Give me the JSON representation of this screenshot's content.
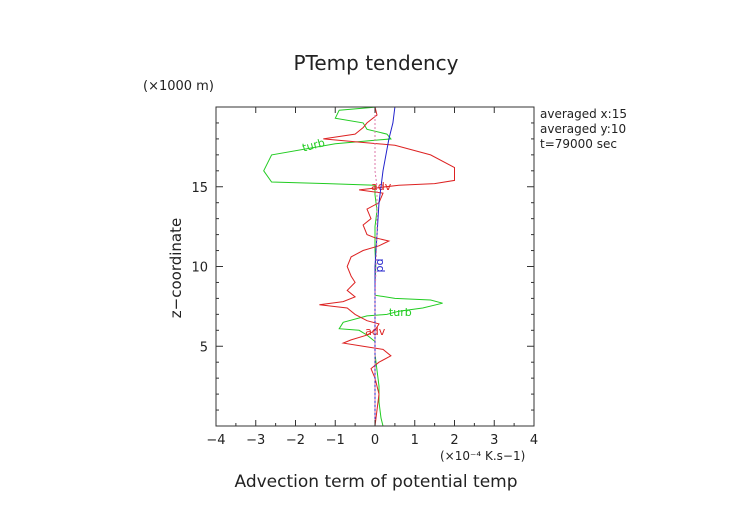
{
  "chart_data": {
    "type": "line",
    "title": "PTemp tendency",
    "xlabel": "Advection term of potential temp",
    "ylabel": "z−coordinate",
    "x_unit": "(×10⁻⁴ K.s−1)",
    "y_unit": "(×1000 m)",
    "xlim": [
      -4,
      4
    ],
    "ylim": [
      0,
      20
    ],
    "x_ticks": [
      "−4",
      "−3",
      "−2",
      "−1",
      "0",
      "1",
      "2",
      "3",
      "4"
    ],
    "y_ticks": [
      "5",
      "10",
      "15"
    ],
    "y_tick_values": [
      5,
      10,
      15
    ],
    "info": [
      "averaged  x:15",
      "averaged  y:10",
      "t=79000 sec"
    ],
    "grid": false,
    "series": [
      {
        "name": "turb",
        "color": "#22cc22",
        "label_at": [
          -1.8,
          17.2
        ],
        "label2_at": [
          0.35,
          6.9
        ],
        "points": [
          [
            0.05,
            20
          ],
          [
            -0.9,
            19.8
          ],
          [
            -1.0,
            19.3
          ],
          [
            -0.3,
            19.0
          ],
          [
            -0.2,
            18.6
          ],
          [
            0.3,
            18.3
          ],
          [
            0.4,
            18.0
          ],
          [
            -1.0,
            17.7
          ],
          [
            -2.6,
            17.0
          ],
          [
            -2.8,
            16.0
          ],
          [
            -2.6,
            15.3
          ],
          [
            -1.2,
            15.2
          ],
          [
            0.0,
            15.1
          ],
          [
            0.0,
            14.5
          ],
          [
            0.05,
            13.5
          ],
          [
            0.0,
            12.5
          ],
          [
            0.0,
            11.0
          ],
          [
            0.02,
            10.0
          ],
          [
            0.0,
            9.0
          ],
          [
            0.0,
            8.2
          ],
          [
            0.5,
            8.0
          ],
          [
            1.4,
            7.9
          ],
          [
            1.7,
            7.7
          ],
          [
            1.2,
            7.4
          ],
          [
            0.6,
            7.2
          ],
          [
            0.3,
            7.0
          ],
          [
            -0.2,
            6.9
          ],
          [
            -0.8,
            6.5
          ],
          [
            -0.9,
            6.1
          ],
          [
            -0.4,
            6.0
          ],
          [
            -0.2,
            5.7
          ],
          [
            0.0,
            5.3
          ],
          [
            0.0,
            4.5
          ],
          [
            0.05,
            3.5
          ],
          [
            0.1,
            2.5
          ],
          [
            0.1,
            1.5
          ],
          [
            0.15,
            0.5
          ],
          [
            0.2,
            0
          ]
        ]
      },
      {
        "name": "adv",
        "color": "#dd2222",
        "label_at": [
          -0.1,
          14.8
        ],
        "label2_at": [
          -0.25,
          5.7
        ],
        "points": [
          [
            0.0,
            20
          ],
          [
            0.05,
            19.5
          ],
          [
            -0.2,
            19.0
          ],
          [
            -0.3,
            18.7
          ],
          [
            -0.5,
            18.3
          ],
          [
            -1.3,
            18.0
          ],
          [
            -0.4,
            17.8
          ],
          [
            0.5,
            17.6
          ],
          [
            1.4,
            17.0
          ],
          [
            2.0,
            16.2
          ],
          [
            2.0,
            15.4
          ],
          [
            1.5,
            15.2
          ],
          [
            0.6,
            15.1
          ],
          [
            -0.4,
            14.8
          ],
          [
            0.2,
            14.6
          ],
          [
            0.1,
            14.0
          ],
          [
            -0.2,
            13.6
          ],
          [
            -0.1,
            13.0
          ],
          [
            -0.3,
            12.6
          ],
          [
            -0.2,
            12.0
          ],
          [
            0.0,
            11.8
          ],
          [
            0.35,
            11.6
          ],
          [
            0.1,
            11.3
          ],
          [
            -0.3,
            11.0
          ],
          [
            -0.6,
            10.6
          ],
          [
            -0.7,
            10.0
          ],
          [
            -0.6,
            9.4
          ],
          [
            -0.5,
            9.0
          ],
          [
            -0.7,
            8.5
          ],
          [
            -0.5,
            8.1
          ],
          [
            -0.8,
            7.8
          ],
          [
            -1.4,
            7.6
          ],
          [
            -0.7,
            7.4
          ],
          [
            -0.5,
            7.0
          ],
          [
            -0.2,
            6.6
          ],
          [
            0.1,
            6.4
          ],
          [
            0.0,
            6.0
          ],
          [
            -0.2,
            5.7
          ],
          [
            -0.6,
            5.4
          ],
          [
            -0.8,
            5.2
          ],
          [
            -0.3,
            5.0
          ],
          [
            0.2,
            4.8
          ],
          [
            0.4,
            4.4
          ],
          [
            0.1,
            4.0
          ],
          [
            -0.1,
            3.6
          ],
          [
            0.0,
            3.0
          ],
          [
            0.1,
            2.0
          ],
          [
            0.05,
            1.0
          ],
          [
            0.0,
            0
          ]
        ]
      },
      {
        "name": "pd",
        "color": "#2222cc",
        "label_at": [
          0.05,
          10.5
        ],
        "points": [
          [
            0.5,
            20
          ],
          [
            0.45,
            19.0
          ],
          [
            0.35,
            18.0
          ],
          [
            0.2,
            16.0
          ],
          [
            0.1,
            14.0
          ],
          [
            0.05,
            12.0
          ],
          [
            0.0,
            10.0
          ],
          [
            0.0,
            8.0
          ],
          [
            0.0,
            6.0
          ],
          [
            0.0,
            4.0
          ],
          [
            0.0,
            2.0
          ],
          [
            0.0,
            0
          ]
        ]
      },
      {
        "name": "",
        "color": "#dd77aa",
        "dashed": true,
        "points": [
          [
            0.0,
            20
          ],
          [
            0.0,
            16.0
          ],
          [
            0.05,
            15.0
          ],
          [
            0.05,
            12.0
          ],
          [
            0.0,
            8.0
          ],
          [
            0.0,
            5.0
          ],
          [
            0.0,
            0
          ]
        ]
      }
    ]
  }
}
